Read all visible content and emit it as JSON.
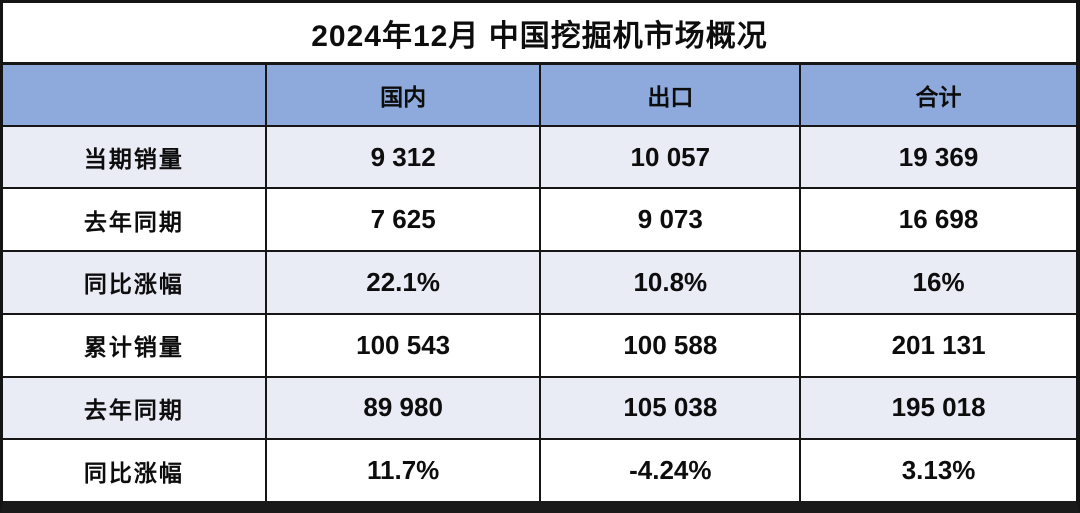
{
  "colors": {
    "header_bg": "#8EA9DB",
    "alt_row_bg": "#E9EBF5",
    "row_bg": "#FFFFFF",
    "border": "#141414",
    "text": "#0D0D0D"
  },
  "chart_data": {
    "type": "table",
    "title": "2024年12月 中国挖掘机市场概况",
    "corner_label": "",
    "columns": [
      "国内",
      "出口",
      "合计"
    ],
    "rows": [
      {
        "label": "当期销量",
        "values": [
          "9 312",
          "10 057",
          "19 369"
        ]
      },
      {
        "label": "去年同期",
        "values": [
          "7 625",
          "9 073",
          "16 698"
        ]
      },
      {
        "label": "同比涨幅",
        "values": [
          "22.1%",
          "10.8%",
          "16%"
        ]
      },
      {
        "label": "累计销量",
        "values": [
          "100 543",
          "100 588",
          "201 131"
        ]
      },
      {
        "label": "去年同期",
        "values": [
          "89 980",
          "105 038",
          "195 018"
        ]
      },
      {
        "label": "同比涨幅",
        "values": [
          "11.7%",
          "-4.24%",
          "3.13%"
        ]
      }
    ],
    "layout": {
      "header_fill": "blue",
      "row_striping": "odd rows tinted lavender, even rows white",
      "all_text_bold_centered": true
    }
  }
}
